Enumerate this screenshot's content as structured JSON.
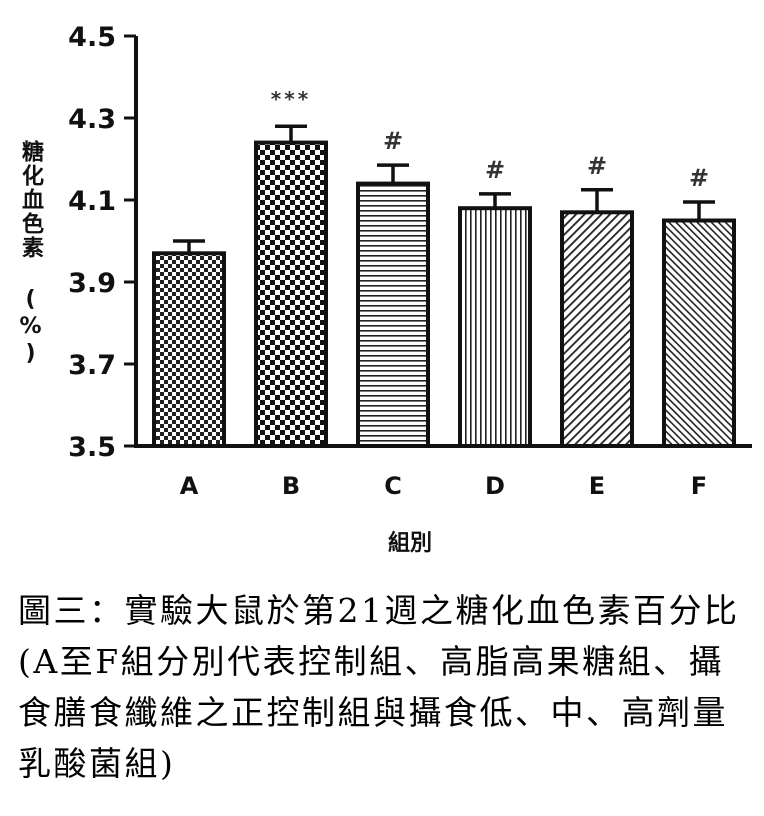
{
  "chart_data": {
    "type": "bar",
    "categories": [
      "A",
      "B",
      "C",
      "D",
      "E",
      "F"
    ],
    "values": [
      3.97,
      4.24,
      4.14,
      4.08,
      4.07,
      4.05
    ],
    "errors": [
      0.03,
      0.04,
      0.045,
      0.035,
      0.055,
      0.045
    ],
    "significance": [
      "",
      "***",
      "#",
      "#",
      "#",
      "#"
    ],
    "ylim": [
      3.5,
      4.5
    ],
    "yticks": [
      "3.5",
      "3.7",
      "3.9",
      "4.1",
      "4.3",
      "4.5"
    ],
    "ylabel": "糖化血色素 (%)",
    "xlabel": "組別",
    "patterns": [
      "checker-small",
      "checker-large",
      "horizontal",
      "vertical",
      "diagonal",
      "diagonal-dense"
    ]
  },
  "caption": "圖三：實驗大鼠於第21週之糖化血色素百分比(A至F組分別代表控制組、高脂高果糖組、攝食膳食纖維之正控制組與攝食低、中、高劑量乳酸菌組)"
}
